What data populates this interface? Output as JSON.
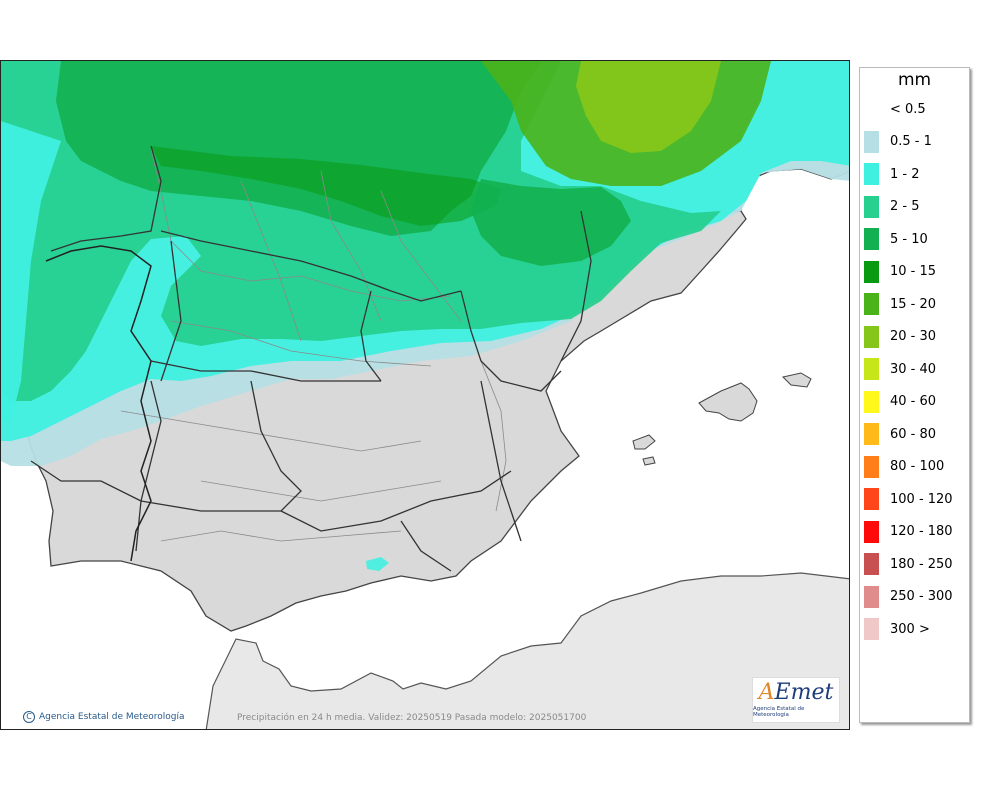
{
  "legend": {
    "title": "mm",
    "items": [
      {
        "label": "< 0.5",
        "color": "none"
      },
      {
        "label": "0.5 - 1",
        "color": "#b5dfe5"
      },
      {
        "label": "1 - 2",
        "color": "#3ff0e0"
      },
      {
        "label": "2 - 5",
        "color": "#27d08f"
      },
      {
        "label": "5 - 10",
        "color": "#12b050"
      },
      {
        "label": "10 - 15",
        "color": "#0a9a12"
      },
      {
        "label": "15 - 20",
        "color": "#4ab31a"
      },
      {
        "label": "20 - 30",
        "color": "#86c61a"
      },
      {
        "label": "30 - 40",
        "color": "#c6e61a"
      },
      {
        "label": "40 - 60",
        "color": "#fff81a"
      },
      {
        "label": "60 - 80",
        "color": "#ffba1a"
      },
      {
        "label": "80 - 100",
        "color": "#ff7e1a"
      },
      {
        "label": "100 - 120",
        "color": "#ff461a"
      },
      {
        "label": "120 - 180",
        "color": "#ff0a0a"
      },
      {
        "label": "180 - 250",
        "color": "#c85050"
      },
      {
        "label": "250 - 300",
        "color": "#e08c8c"
      },
      {
        "label": "300 >",
        "color": "#f0c8c8"
      }
    ]
  },
  "footer": {
    "copyright": "Agencia Estatal de Meteorología",
    "caption": "Precipitación en 24 h media. Validez: 20250519 Pasada modelo: 2025051700"
  },
  "logo": {
    "word_a": "A",
    "word_rest": "Emet",
    "subtitle": "Agencia Estatal de Meteorología"
  },
  "colors": {
    "land": "#d9d9d9",
    "sea": "#ffffff",
    "africa": "#e8e8e8",
    "borders": "#333333",
    "province_lines": "#7a7a7a"
  }
}
